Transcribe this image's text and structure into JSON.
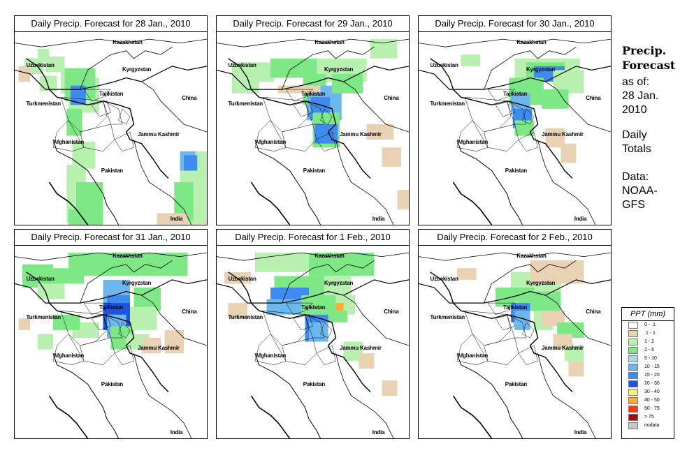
{
  "panels": [
    {
      "title": "Daily Precip. Forecast for  28 Jan., 2010",
      "precip": [
        [
          5,
          14,
          10,
          8,
          2
        ],
        [
          13,
          23,
          9,
          8,
          2
        ],
        [
          16,
          13,
          10,
          8,
          2
        ],
        [
          12,
          9,
          6,
          7,
          2
        ],
        [
          24,
          20,
          10,
          12,
          2
        ],
        [
          28,
          24,
          16,
          18,
          2
        ],
        [
          26,
          19,
          16,
          16,
          3
        ],
        [
          26,
          26,
          8,
          10,
          3
        ],
        [
          29,
          28,
          8,
          10,
          6
        ],
        [
          27,
          40,
          8,
          14,
          3
        ],
        [
          30,
          57,
          12,
          14,
          2
        ],
        [
          27,
          69,
          10,
          30,
          2
        ],
        [
          32,
          78,
          14,
          28,
          3
        ],
        [
          28,
          92,
          12,
          30,
          3
        ],
        [
          2,
          18,
          6,
          8,
          1
        ],
        [
          86,
          62,
          14,
          38,
          2
        ],
        [
          83,
          78,
          10,
          20,
          3
        ],
        [
          86,
          62,
          8,
          10,
          5
        ],
        [
          88,
          64,
          7,
          8,
          6
        ],
        [
          74,
          94,
          16,
          8,
          1
        ],
        [
          98,
          98,
          8,
          8,
          1
        ]
      ]
    },
    {
      "title": "Daily Precip. Forecast for  29 Jan., 2010",
      "precip": [
        [
          8,
          16,
          22,
          10,
          2
        ],
        [
          28,
          14,
          24,
          10,
          3
        ],
        [
          52,
          14,
          26,
          12,
          2
        ],
        [
          8,
          26,
          14,
          6,
          2
        ],
        [
          45,
          22,
          12,
          16,
          3
        ],
        [
          47,
          28,
          18,
          18,
          5
        ],
        [
          49,
          34,
          10,
          12,
          6
        ],
        [
          50,
          42,
          14,
          18,
          3
        ],
        [
          51,
          48,
          12,
          10,
          6
        ],
        [
          8,
          16,
          8,
          6,
          2
        ],
        [
          80,
          4,
          14,
          10,
          2
        ],
        [
          78,
          48,
          14,
          8,
          1
        ],
        [
          86,
          60,
          10,
          10,
          1
        ],
        [
          94,
          82,
          8,
          10,
          1
        ],
        [
          32,
          28,
          22,
          4,
          1
        ],
        [
          60,
          22,
          16,
          10,
          3
        ]
      ]
    },
    {
      "title": "Daily Precip. Forecast for  30 Jan., 2010",
      "precip": [
        [
          50,
          14,
          34,
          12,
          2
        ],
        [
          56,
          16,
          20,
          10,
          3
        ],
        [
          60,
          18,
          16,
          8,
          6
        ],
        [
          47,
          24,
          18,
          14,
          3
        ],
        [
          48,
          32,
          10,
          10,
          5
        ],
        [
          49,
          40,
          10,
          10,
          6
        ],
        [
          50,
          46,
          10,
          8,
          3
        ],
        [
          70,
          20,
          16,
          12,
          2
        ],
        [
          22,
          12,
          10,
          6,
          2
        ],
        [
          66,
          50,
          10,
          10,
          1
        ],
        [
          74,
          58,
          8,
          10,
          1
        ],
        [
          64,
          30,
          14,
          10,
          3
        ]
      ]
    },
    {
      "title": "Daily Precip. Forecast for  31 Jan., 2010",
      "precip": [
        [
          28,
          4,
          62,
          12,
          3
        ],
        [
          20,
          12,
          16,
          8,
          3
        ],
        [
          4,
          10,
          16,
          12,
          3
        ],
        [
          12,
          20,
          14,
          8,
          2
        ],
        [
          46,
          18,
          14,
          14,
          5
        ],
        [
          48,
          26,
          12,
          14,
          6
        ],
        [
          46,
          30,
          14,
          14,
          7
        ],
        [
          48,
          36,
          10,
          12,
          5
        ],
        [
          30,
          40,
          14,
          8,
          2
        ],
        [
          50,
          42,
          12,
          12,
          3
        ],
        [
          62,
          22,
          14,
          12,
          3
        ],
        [
          60,
          32,
          14,
          12,
          2
        ],
        [
          58,
          46,
          12,
          8,
          2
        ],
        [
          66,
          48,
          10,
          8,
          1
        ],
        [
          78,
          44,
          10,
          12,
          1
        ],
        [
          20,
          36,
          14,
          8,
          3
        ],
        [
          12,
          46,
          8,
          8,
          2
        ],
        [
          2,
          38,
          6,
          6,
          1
        ]
      ]
    },
    {
      "title": "Daily Precip. Forecast for  1 Feb., 2010",
      "precip": [
        [
          20,
          4,
          28,
          10,
          2
        ],
        [
          48,
          4,
          34,
          12,
          3
        ],
        [
          4,
          14,
          14,
          6,
          1
        ],
        [
          30,
          16,
          30,
          12,
          3
        ],
        [
          28,
          22,
          20,
          10,
          6
        ],
        [
          26,
          28,
          18,
          8,
          5
        ],
        [
          56,
          16,
          14,
          12,
          2
        ],
        [
          62,
          26,
          10,
          10,
          2
        ],
        [
          44,
          26,
          18,
          10,
          3
        ],
        [
          46,
          36,
          12,
          14,
          6
        ],
        [
          48,
          40,
          10,
          10,
          5
        ],
        [
          62,
          30,
          4,
          4,
          9
        ],
        [
          58,
          34,
          10,
          6,
          3
        ],
        [
          66,
          50,
          10,
          10,
          2
        ],
        [
          74,
          56,
          8,
          8,
          1
        ],
        [
          86,
          70,
          8,
          8,
          1
        ],
        [
          6,
          30,
          10,
          8,
          1
        ]
      ]
    },
    {
      "title": "Daily Precip. Forecast for  2 Feb., 2010",
      "precip": [
        [
          48,
          14,
          26,
          12,
          2
        ],
        [
          58,
          8,
          28,
          12,
          1
        ],
        [
          40,
          22,
          20,
          10,
          3
        ],
        [
          52,
          24,
          22,
          10,
          3
        ],
        [
          48,
          30,
          10,
          10,
          6
        ],
        [
          50,
          34,
          8,
          10,
          5
        ],
        [
          60,
          34,
          10,
          10,
          2
        ],
        [
          64,
          34,
          12,
          8,
          1
        ],
        [
          72,
          40,
          14,
          8,
          3
        ],
        [
          70,
          46,
          10,
          8,
          1
        ],
        [
          76,
          52,
          10,
          8,
          2
        ],
        [
          78,
          60,
          8,
          8,
          1
        ],
        [
          20,
          12,
          10,
          6,
          1
        ]
      ]
    }
  ],
  "places": {
    "kazakhstan": "Kazakhstan",
    "uzbekistan": "Uzbekistan",
    "kyrgyzstan": "Kyrgyzstan",
    "tajikistan": "Tajikistan",
    "turkmenistan": "Turkmenistan",
    "china": "China",
    "jammu_kashmir": "Jammu Kashmir",
    "afghanistan": "Afghanistan",
    "pakistan": "Pakistan",
    "india": "India"
  },
  "side": {
    "heading_line1": "Precip.",
    "heading_line2": "Forecast",
    "asof_line1": "as of:",
    "asof_line2": "28 Jan.",
    "asof_line3": "2010",
    "daily_line1": "Daily",
    "daily_line2": "Totals",
    "data_line1": "Data:",
    "data_line2": "NOAA-",
    "data_line3": "GFS"
  },
  "legend": {
    "title": "PPT (mm)",
    "bins": [
      {
        "label": "0 - .1",
        "color": "#ffffff"
      },
      {
        "label": ".1 - 1",
        "color": "#e9d2b4"
      },
      {
        "label": "1 - 2",
        "color": "#b8f0b0"
      },
      {
        "label": "2 - 5",
        "color": "#7ee887"
      },
      {
        "label": "5 - 10",
        "color": "#a6dcf2"
      },
      {
        "label": "10 - 15",
        "color": "#6cb8ee"
      },
      {
        "label": "15 - 20",
        "color": "#3f8cf0"
      },
      {
        "label": "20 - 30",
        "color": "#1a54e0"
      },
      {
        "label": "30 - 40",
        "color": "#fff07a"
      },
      {
        "label": "40 - 50",
        "color": "#ffad30"
      },
      {
        "label": "50 - 75",
        "color": "#ff3a12"
      },
      {
        "label": "> 75",
        "color": "#a01010"
      },
      {
        "label": "nodata",
        "color": "#c8c8c8"
      }
    ]
  }
}
